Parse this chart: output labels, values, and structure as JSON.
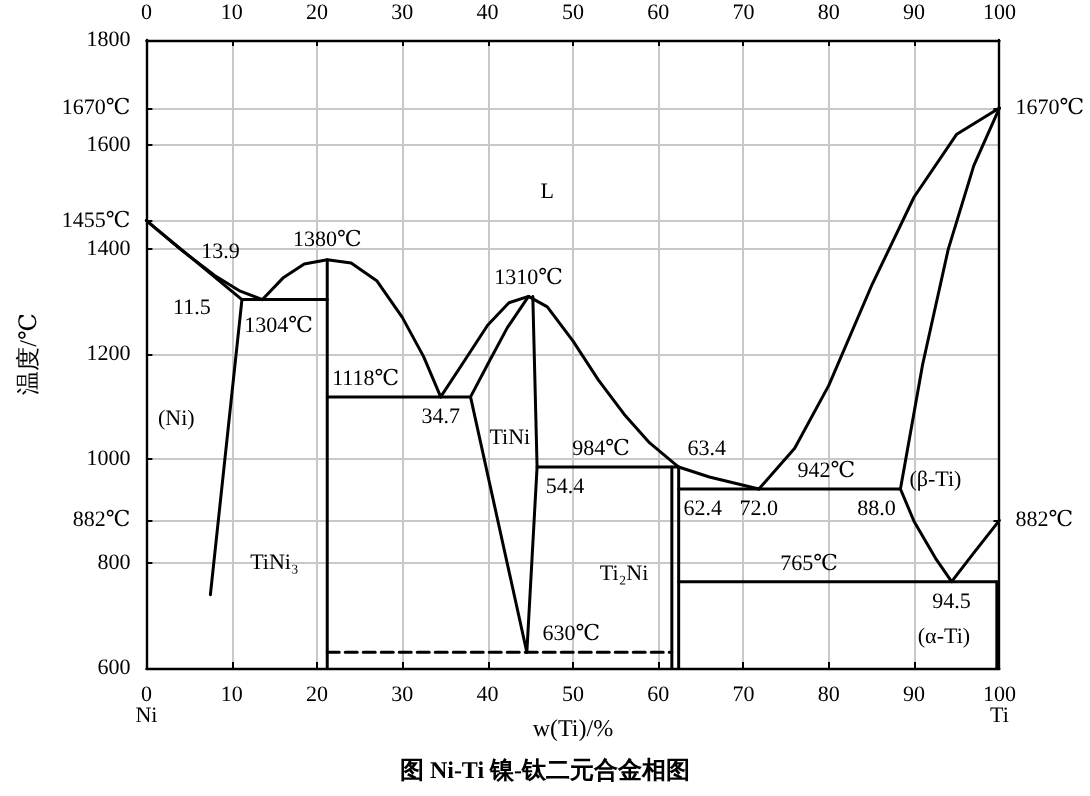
{
  "chart_data": {
    "type": "line",
    "title": "图 Ni-Ti 镍-钛二元合金相图",
    "xlabel": "w(Ti)/%",
    "ylabel": "温度/℃",
    "xlim": [
      0,
      100
    ],
    "xticks": [
      0,
      10,
      20,
      30,
      40,
      50,
      60,
      70,
      80,
      90,
      100
    ],
    "x2lim": [
      0,
      100
    ],
    "x2ticks": [
      0,
      10,
      20,
      30,
      40,
      50,
      60,
      70,
      80,
      90,
      100
    ],
    "ylim": [
      600,
      1800
    ],
    "yticks": [
      600,
      800,
      {
        "value": 882,
        "label": "882℃"
      },
      1000,
      1200,
      1400,
      {
        "value": 1455,
        "label": "1455℃"
      },
      1600,
      {
        "value": 1670,
        "label": "1670℃"
      },
      1800
    ],
    "y2lim": [
      600,
      1800
    ],
    "y2ticks": [
      {
        "value": 882,
        "label": "882℃"
      },
      {
        "value": 1670,
        "label": "1670℃"
      }
    ],
    "grid": true,
    "marker": "none",
    "series": [
      {
        "color": "#000000",
        "x": [
          0,
          4,
          8,
          11,
          13.6
        ],
        "values": [
          1455,
          1400,
          1350,
          1320,
          1304
        ]
      },
      {
        "color": "#000000",
        "x": [
          0,
          11.2,
          7.5
        ],
        "values": [
          1455,
          1304,
          740
        ]
      },
      {
        "color": "#000000",
        "x": [
          11.2,
          21.2
        ],
        "values": [
          1304,
          1304
        ]
      },
      {
        "color": "#000000",
        "x": [
          13.6,
          16,
          18.5,
          21.2,
          24,
          27,
          30,
          32.5,
          34.5
        ],
        "values": [
          1304,
          1345,
          1372,
          1380,
          1374,
          1340,
          1270,
          1195,
          1118
        ]
      },
      {
        "color": "#000000",
        "x": [
          21.2,
          21.2
        ],
        "values": [
          1380,
          600
        ]
      },
      {
        "color": "#000000",
        "x": [
          21.2,
          38
        ],
        "values": [
          1118,
          1118
        ]
      },
      {
        "color": "#000000",
        "x": [
          34.5,
          37,
          40,
          42.5,
          44.8,
          47,
          50,
          53,
          56,
          59,
          62.4,
          66,
          71.8
        ],
        "values": [
          1118,
          1180,
          1255,
          1298,
          1310,
          1290,
          1225,
          1150,
          1085,
          1030,
          984,
          965,
          942
        ]
      },
      {
        "color": "#000000",
        "x": [
          44.8,
          42.3,
          40,
          38,
          44.6
        ],
        "values": [
          1310,
          1250,
          1180,
          1118,
          630
        ]
      },
      {
        "color": "#000000",
        "x": [
          45.3,
          45.8,
          44.6
        ],
        "values": [
          1310,
          984,
          630
        ]
      },
      {
        "color": "#000000",
        "x": [
          45.8,
          62.4
        ],
        "values": [
          984,
          984
        ]
      },
      {
        "color": "#000000",
        "x": [
          61.6,
          61.6
        ],
        "values": [
          984,
          600
        ]
      },
      {
        "color": "#000000",
        "x": [
          62.4,
          62.4
        ],
        "values": [
          984,
          600
        ]
      },
      {
        "color": "#000000",
        "x": [
          62.4,
          88.4
        ],
        "values": [
          942,
          942
        ]
      },
      {
        "color": "#000000",
        "x": [
          71.8,
          76,
          80,
          85,
          90,
          95,
          100
        ],
        "values": [
          942,
          1020,
          1140,
          1330,
          1500,
          1620,
          1670
        ]
      },
      {
        "color": "#000000",
        "x": [
          100,
          97,
          94,
          91,
          88.4
        ],
        "values": [
          1670,
          1560,
          1400,
          1180,
          942
        ]
      },
      {
        "color": "#000000",
        "x": [
          88.4,
          90,
          92.5,
          94.4
        ],
        "values": [
          942,
          880,
          810,
          765
        ]
      },
      {
        "color": "#000000",
        "x": [
          62.4,
          99.7
        ],
        "values": [
          765,
          765
        ]
      },
      {
        "color": "#000000",
        "x": [
          94.4,
          97,
          100
        ],
        "values": [
          765,
          820,
          882
        ]
      },
      {
        "color": "#000000",
        "x": [
          99.7,
          99.7
        ],
        "values": [
          765,
          600
        ]
      },
      {
        "color": "#000000",
        "line_style": "dashed",
        "x": [
          21.2,
          61.6
        ],
        "values": [
          630,
          630
        ]
      }
    ],
    "annotations": [
      "L",
      {
        "text": "1380℃",
        "x": 21.2,
        "y": 1380
      },
      {
        "text": "13.9",
        "x": 13.6,
        "y": 1304
      },
      {
        "text": "11.5",
        "x": 11.2,
        "y": 1304
      },
      {
        "text": "1304℃",
        "x": 14.8,
        "y": 1304
      },
      {
        "text": "1310℃",
        "x": 44.8,
        "y": 1310
      },
      "(Ni)",
      {
        "text": "1118℃",
        "x": 25.7,
        "y": 1118
      },
      {
        "text": "34.7",
        "x": 34.5,
        "y": 1118
      },
      "TiNi",
      "TiNi₃",
      {
        "text": "984℃",
        "x": 53.3,
        "y": 984
      },
      {
        "text": "54.4",
        "x": 45.8,
        "y": 984
      },
      {
        "text": "63.4",
        "x": 62.4,
        "y": 984
      },
      {
        "text": "62.4",
        "x": 62.4,
        "y": 942
      },
      {
        "text": "72.0",
        "x": 71.8,
        "y": 942
      },
      {
        "text": "942℃",
        "x": 79.7,
        "y": 942
      },
      {
        "text": "88.0",
        "x": 88.4,
        "y": 942
      },
      "(β-Ti)",
      {
        "text": "765℃",
        "x": 77.7,
        "y": 765
      },
      {
        "text": "94.5",
        "x": 94.4,
        "y": 765
      },
      "(α-Ti)",
      "Ti₂Ni",
      {
        "text": "630℃",
        "x": 49.8,
        "y": 630
      },
      "Ni",
      "Ti"
    ]
  }
}
